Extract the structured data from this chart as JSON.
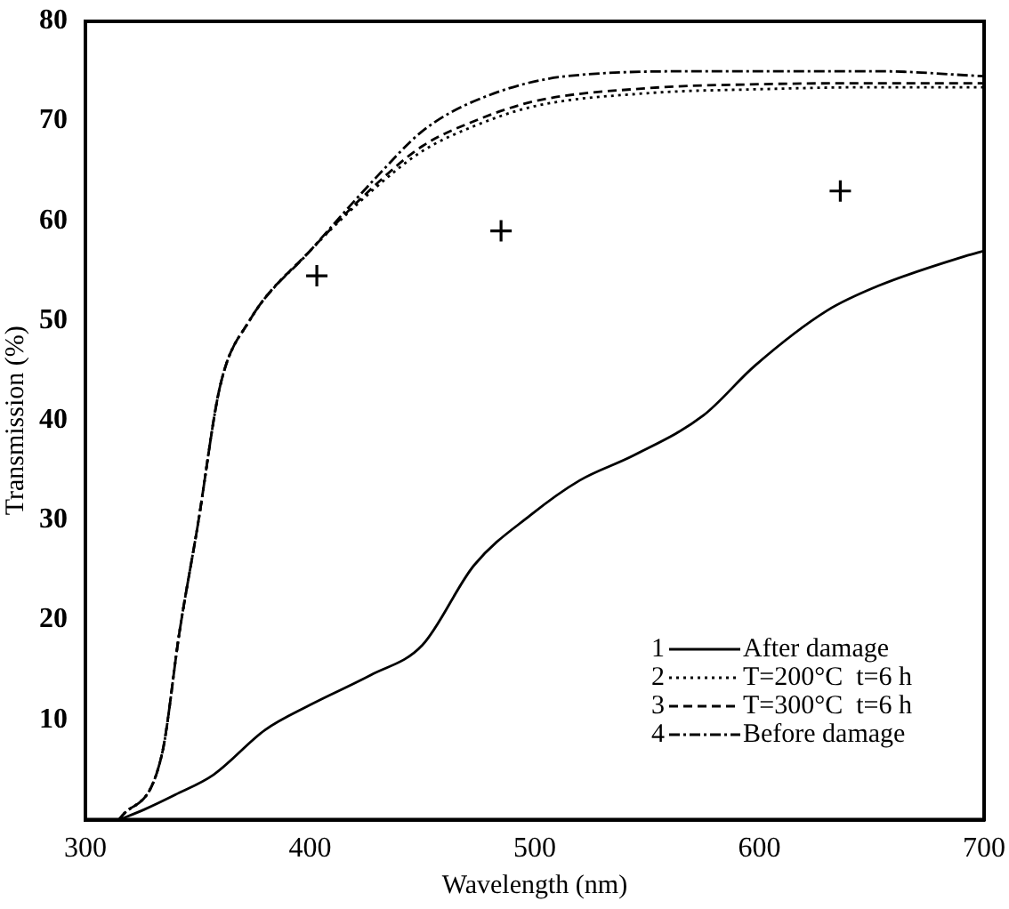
{
  "chart_data": {
    "type": "line",
    "xlabel": "Wavelength (nm)",
    "ylabel": "Transmission (%)",
    "xlim": [
      300,
      700
    ],
    "xticks": [
      300,
      400,
      500,
      600,
      700
    ],
    "ylim": [
      0,
      80
    ],
    "yticks": [
      10,
      20,
      30,
      40,
      50,
      60,
      70,
      80
    ],
    "grid": false,
    "legend": "bottom right",
    "annotations": [
      "1",
      "2",
      "3",
      "4"
    ],
    "marker": "none",
    "series": [
      {
        "name": "After damage",
        "color": "#000000",
        "line_style": "solid",
        "x": [
          315,
          326,
          340,
          357,
          380,
          400,
          427,
          450,
          473,
          498,
          520,
          544,
          575,
          598,
          630,
          653,
          692,
          700
        ],
        "values": [
          0,
          1,
          2.5,
          4.5,
          9,
          11.5,
          14.5,
          17.5,
          25.5,
          30.5,
          34,
          36.5,
          40.5,
          45.5,
          51,
          53.5,
          56.5,
          57
        ]
      },
      {
        "name": "T=200°C  t=6 h",
        "color": "#000000",
        "line_style": "dotted",
        "x": [
          315,
          334,
          342,
          350,
          360,
          373,
          400,
          430,
          450,
          473,
          500,
          550,
          600,
          650,
          700
        ],
        "values": [
          0,
          6.5,
          19,
          29.5,
          43.5,
          50,
          57,
          63.5,
          67,
          69.5,
          71.5,
          72.8,
          73.2,
          73.4,
          73.4
        ]
      },
      {
        "name": "T=300°C  t=6 h",
        "color": "#000000",
        "line_style": "dashed",
        "x": [
          315,
          334,
          342,
          350,
          360,
          373,
          400,
          430,
          450,
          473,
          500,
          550,
          600,
          650,
          700
        ],
        "values": [
          0,
          6.5,
          19,
          29.5,
          43.5,
          50,
          57,
          63.8,
          67.5,
          70,
          72,
          73.3,
          73.7,
          73.8,
          73.8
        ]
      },
      {
        "name": "Before damage",
        "color": "#000000",
        "line_style": "dashdot",
        "x": [
          315,
          334,
          342,
          350,
          360,
          373,
          400,
          430,
          450,
          473,
          514,
          576,
          653,
          700
        ],
        "values": [
          0,
          6.5,
          19,
          29.5,
          43.5,
          50,
          57,
          64.5,
          69,
          72,
          74.5,
          75,
          75,
          74.5
        ]
      },
      {
        "type": "scatter",
        "color": "#000000",
        "marker": "cross",
        "x": [
          403,
          485,
          636
        ],
        "values": [
          54.5,
          59,
          63
        ]
      }
    ]
  }
}
